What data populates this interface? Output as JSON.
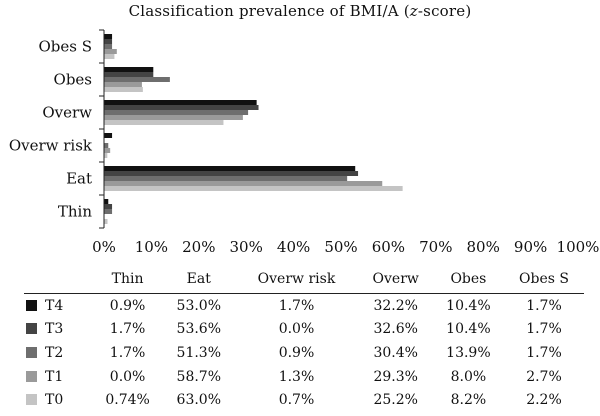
{
  "chart_data": {
    "type": "bar",
    "orientation": "horizontal",
    "title_prefix": "Classification prevalence of BMI/A (",
    "title_italic": "z",
    "title_suffix": "-score)",
    "categories": [
      "Thin",
      "Eat",
      "Overw risk",
      "Overw",
      "Obes",
      "Obes S"
    ],
    "series": [
      {
        "name": "T4",
        "color": "#111111",
        "values": [
          0.9,
          53.0,
          1.7,
          32.2,
          10.4,
          1.7
        ],
        "labels": [
          "0.9%",
          "53.0%",
          "1.7%",
          "32.2%",
          "10.4%",
          "1.7%"
        ]
      },
      {
        "name": "T3",
        "color": "#444444",
        "values": [
          1.7,
          53.6,
          0.0,
          32.6,
          10.4,
          1.7
        ],
        "labels": [
          "1.7%",
          "53.6%",
          "0.0%",
          "32.6%",
          "10.4%",
          "1.7%"
        ]
      },
      {
        "name": "T2",
        "color": "#6e6e6e",
        "values": [
          1.7,
          51.3,
          0.9,
          30.4,
          13.9,
          1.7
        ],
        "labels": [
          "1.7%",
          "51.3%",
          "0.9%",
          "30.4%",
          "13.9%",
          "1.7%"
        ]
      },
      {
        "name": "T1",
        "color": "#9a9a9a",
        "values": [
          0.0,
          58.7,
          1.3,
          29.3,
          8.0,
          2.7
        ],
        "labels": [
          "0.0%",
          "58.7%",
          "1.3%",
          "29.3%",
          "8.0%",
          "2.7%"
        ]
      },
      {
        "name": "T0",
        "color": "#c4c4c4",
        "values": [
          0.74,
          63.0,
          0.7,
          25.2,
          8.2,
          2.2
        ],
        "labels": [
          "0.74%",
          "63.0%",
          "0.7%",
          "25.2%",
          "8.2%",
          "2.2%"
        ]
      }
    ],
    "xlim": [
      0,
      100
    ],
    "x_ticks": [
      "0%",
      "10%",
      "20%",
      "30%",
      "40%",
      "50%",
      "60%",
      "70%",
      "80%",
      "90%",
      "100%"
    ],
    "grid": false,
    "legend": "data-table"
  }
}
